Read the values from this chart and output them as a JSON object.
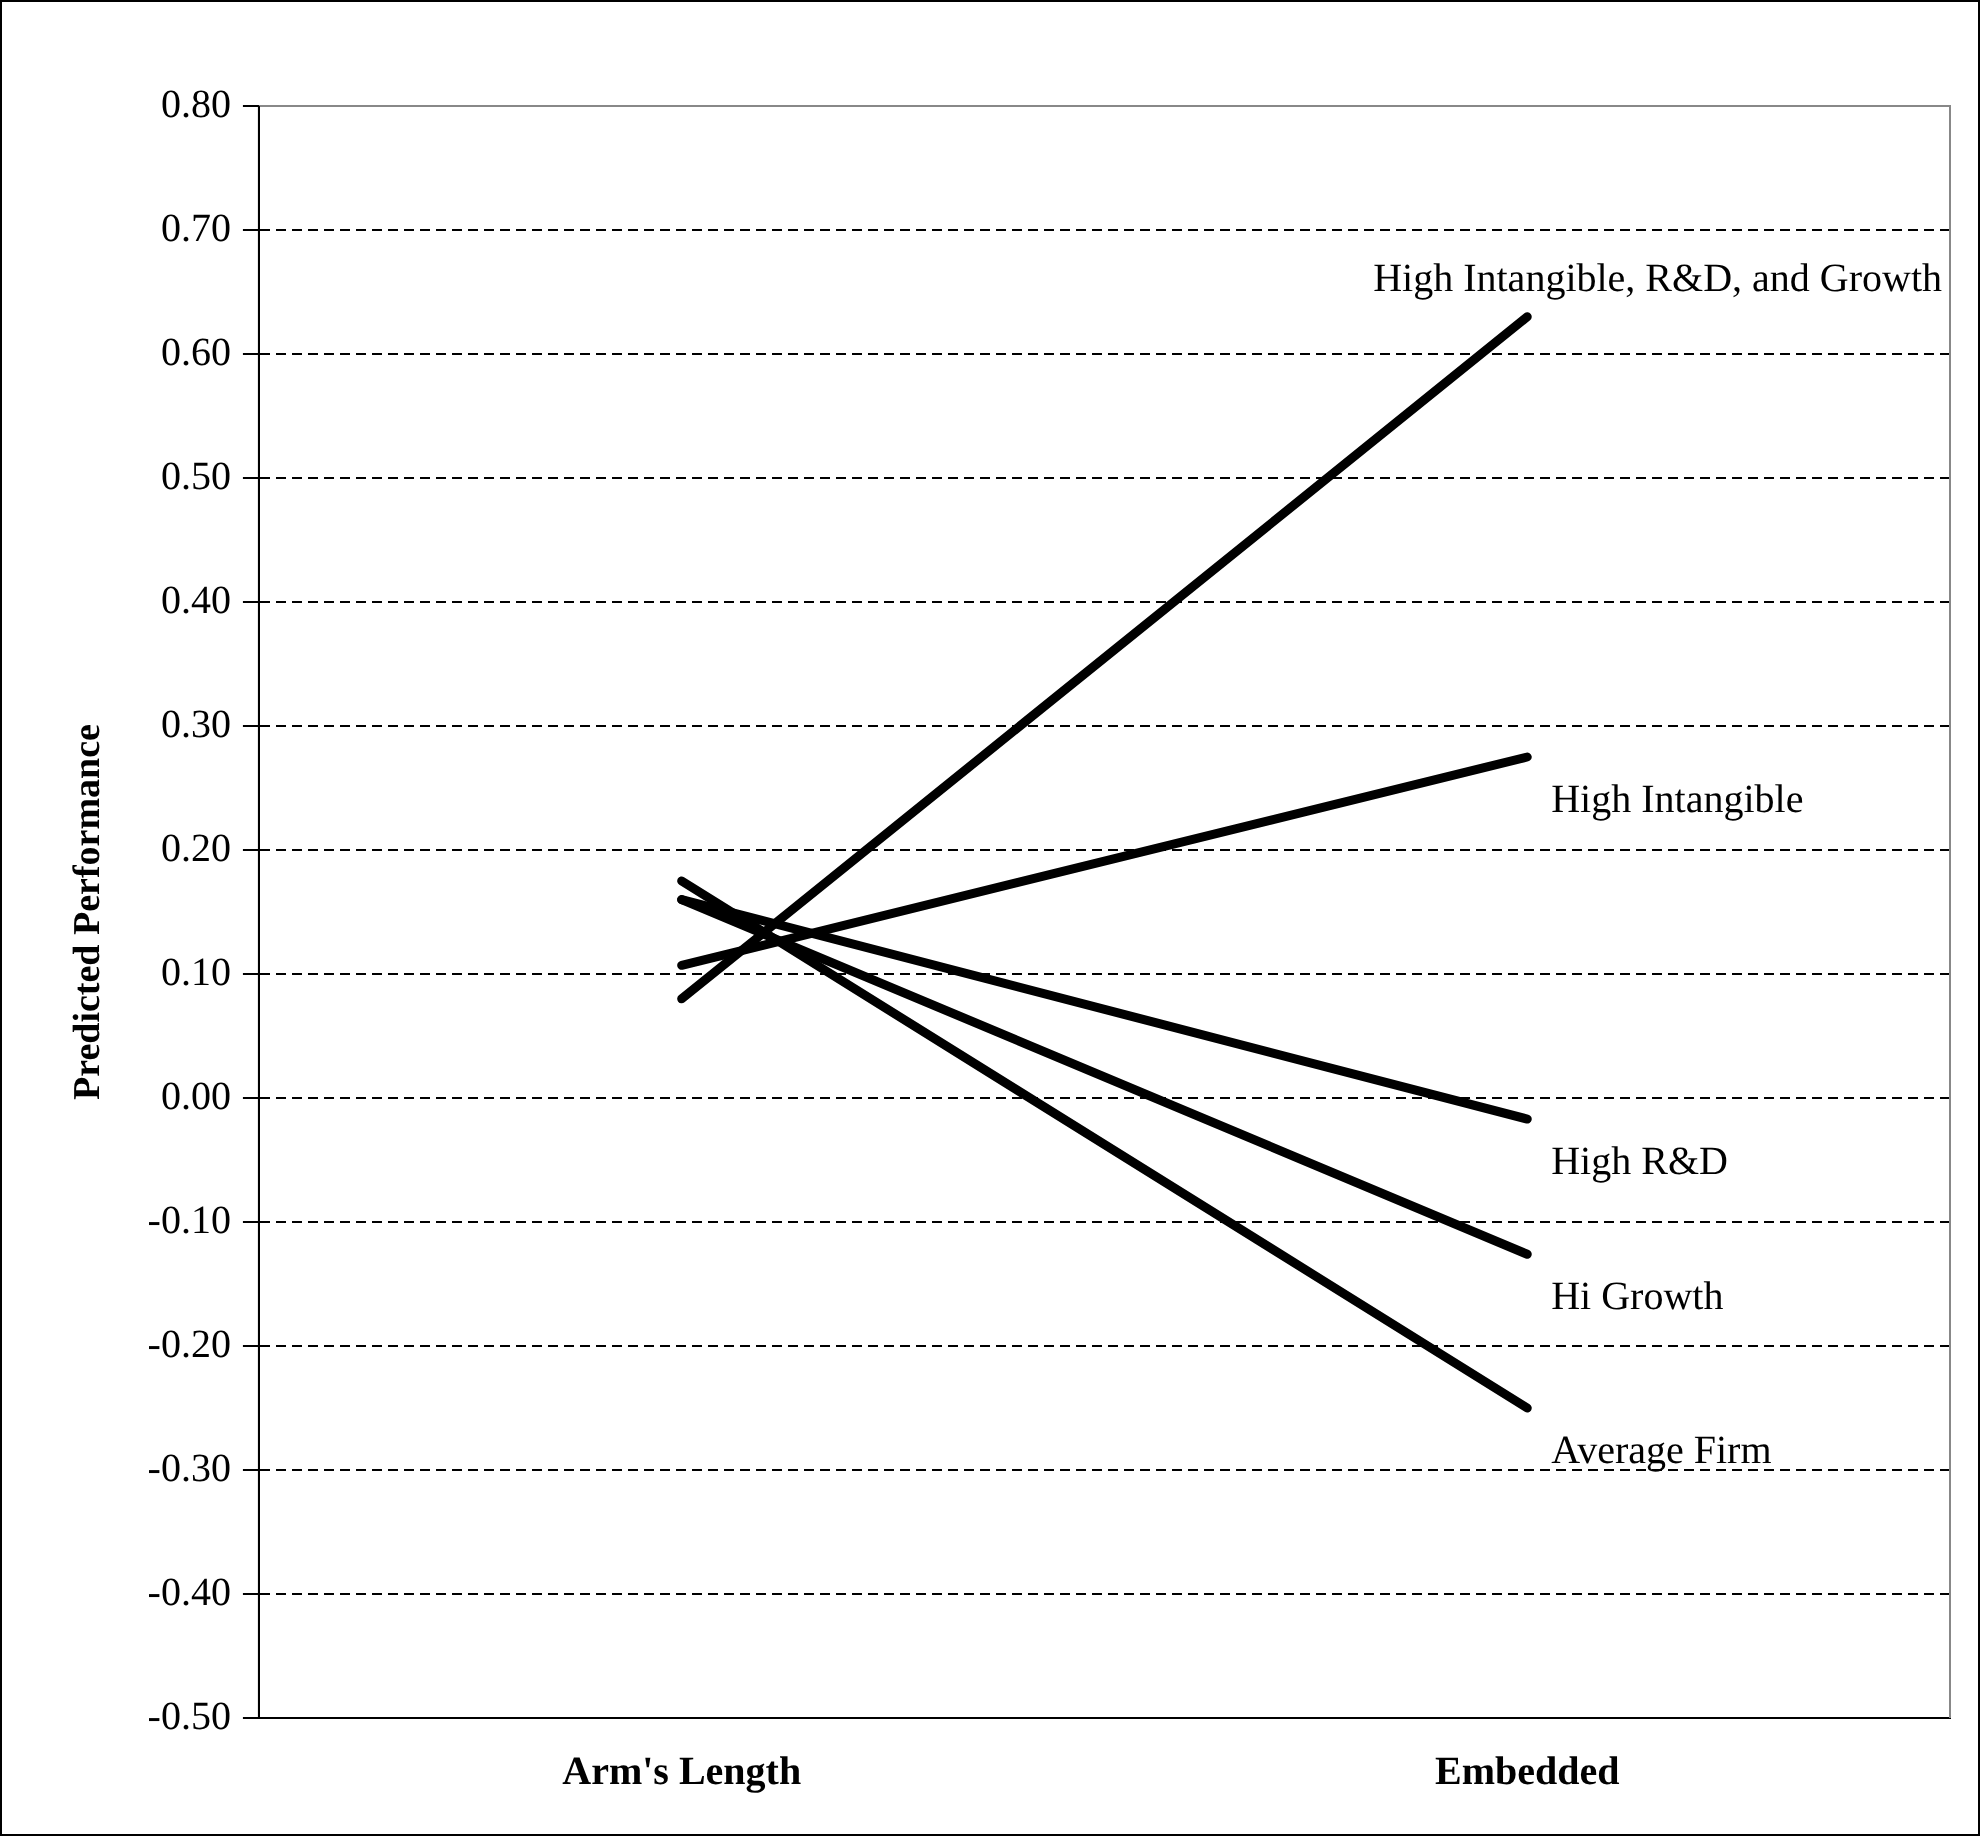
{
  "chart_data": {
    "type": "line",
    "ylabel": "Predicted Performance",
    "categories": [
      "Arm's Length",
      "Embedded"
    ],
    "series": [
      {
        "name": "High Intangible, R&D, and Growth",
        "color": "#000000",
        "values": [
          0.08,
          0.63
        ]
      },
      {
        "name": "High Intangible",
        "color": "#000000",
        "values": [
          0.107,
          0.275
        ]
      },
      {
        "name": "High R&D",
        "color": "#000000",
        "values": [
          0.16,
          -0.017
        ]
      },
      {
        "name": "Hi Growth",
        "color": "#000000",
        "values": [
          0.16,
          -0.126
        ]
      },
      {
        "name": "Average Firm",
        "color": "#000000",
        "values": [
          0.175,
          -0.25
        ]
      }
    ],
    "ylim": [
      -0.5,
      0.8
    ],
    "yticks": [
      {
        "value": -0.5,
        "label": "-0.50"
      },
      {
        "value": -0.4,
        "label": "-0.40"
      },
      {
        "value": -0.3,
        "label": "-0.30"
      },
      {
        "value": -0.2,
        "label": "-0.20"
      },
      {
        "value": -0.1,
        "label": "-0.10"
      },
      {
        "value": 0,
        "label": "0.00"
      },
      {
        "value": 0.1,
        "label": "0.10"
      },
      {
        "value": 0.2,
        "label": "0.20"
      },
      {
        "value": 0.3,
        "label": "0.30"
      },
      {
        "value": 0.4,
        "label": "0.40"
      },
      {
        "value": 0.5,
        "label": "0.50"
      },
      {
        "value": 0.6,
        "label": "0.60"
      },
      {
        "value": 0.7,
        "label": "0.70"
      },
      {
        "value": 0.8,
        "label": "0.80"
      }
    ],
    "grid": "y",
    "legend": false,
    "marker": "none",
    "line_style": "solid"
  }
}
